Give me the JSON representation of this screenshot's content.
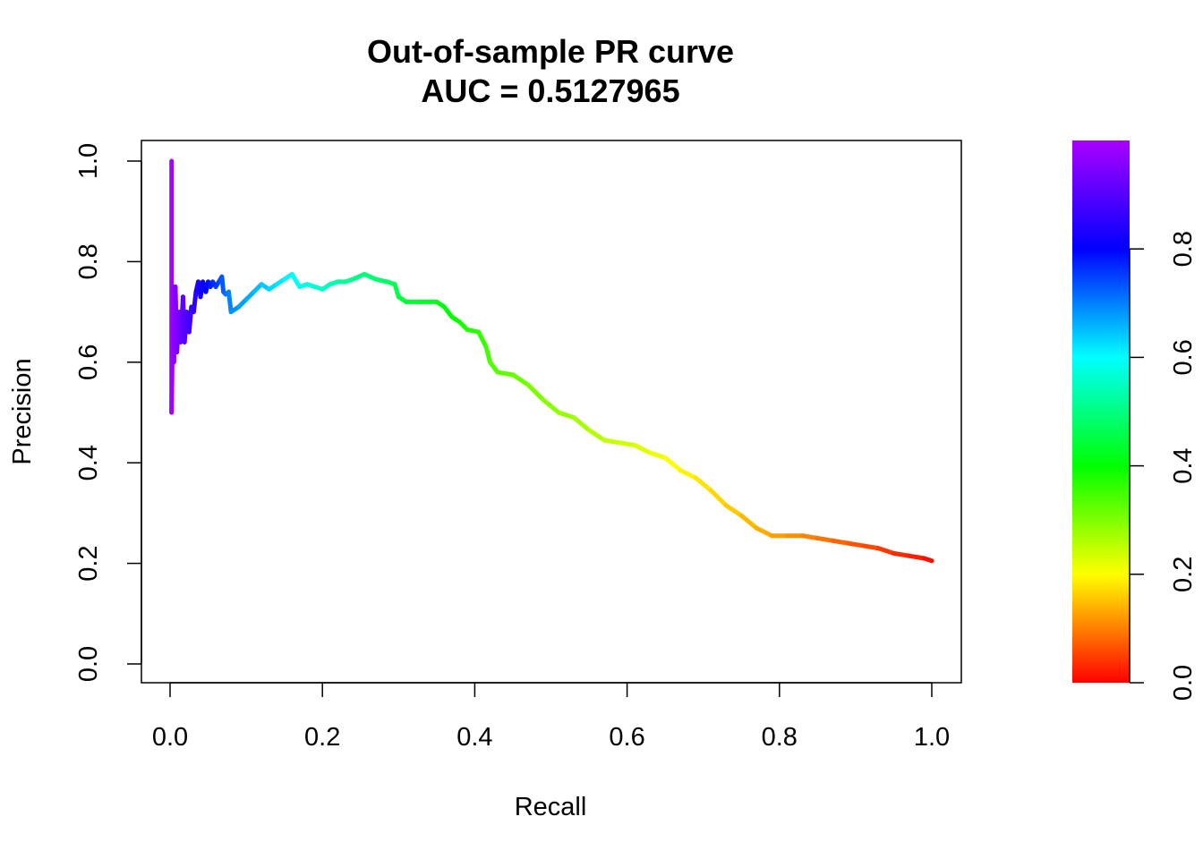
{
  "chart_data": {
    "type": "line",
    "title_lines": [
      "Out-of-sample PR curve",
      "AUC = 0.5127965"
    ],
    "xlabel": "Recall",
    "ylabel": "Precision",
    "xlim": [
      0,
      1
    ],
    "ylim": [
      0,
      1
    ],
    "x_ticks": [
      "0.0",
      "0.2",
      "0.4",
      "0.6",
      "0.8",
      "1.0"
    ],
    "y_ticks": [
      "0.0",
      "0.2",
      "0.4",
      "0.6",
      "0.8",
      "1.0"
    ],
    "grid": false,
    "line_color_scale": "rainbow by threshold",
    "series": [
      {
        "points": [
          [
            0.002,
            1.0
          ],
          [
            0.002,
            0.5
          ],
          [
            0.004,
            0.75
          ],
          [
            0.005,
            0.6
          ],
          [
            0.007,
            0.75
          ],
          [
            0.009,
            0.62
          ],
          [
            0.012,
            0.7
          ],
          [
            0.014,
            0.64
          ],
          [
            0.017,
            0.73
          ],
          [
            0.019,
            0.64
          ],
          [
            0.022,
            0.7
          ],
          [
            0.025,
            0.66
          ],
          [
            0.028,
            0.71
          ],
          [
            0.031,
            0.7
          ],
          [
            0.034,
            0.74
          ],
          [
            0.037,
            0.76
          ],
          [
            0.04,
            0.73
          ],
          [
            0.043,
            0.76
          ],
          [
            0.047,
            0.74
          ],
          [
            0.05,
            0.76
          ],
          [
            0.053,
            0.75
          ],
          [
            0.056,
            0.76
          ],
          [
            0.06,
            0.75
          ],
          [
            0.064,
            0.76
          ],
          [
            0.068,
            0.77
          ],
          [
            0.07,
            0.74
          ],
          [
            0.073,
            0.735
          ],
          [
            0.077,
            0.74
          ],
          [
            0.08,
            0.7
          ],
          [
            0.09,
            0.71
          ],
          [
            0.1,
            0.725
          ],
          [
            0.11,
            0.74
          ],
          [
            0.12,
            0.755
          ],
          [
            0.13,
            0.745
          ],
          [
            0.14,
            0.755
          ],
          [
            0.15,
            0.765
          ],
          [
            0.16,
            0.775
          ],
          [
            0.17,
            0.75
          ],
          [
            0.18,
            0.755
          ],
          [
            0.19,
            0.75
          ],
          [
            0.2,
            0.745
          ],
          [
            0.21,
            0.755
          ],
          [
            0.22,
            0.76
          ],
          [
            0.23,
            0.76
          ],
          [
            0.24,
            0.765
          ],
          [
            0.255,
            0.775
          ],
          [
            0.27,
            0.765
          ],
          [
            0.285,
            0.76
          ],
          [
            0.295,
            0.755
          ],
          [
            0.3,
            0.73
          ],
          [
            0.31,
            0.72
          ],
          [
            0.33,
            0.72
          ],
          [
            0.35,
            0.72
          ],
          [
            0.36,
            0.71
          ],
          [
            0.37,
            0.69
          ],
          [
            0.38,
            0.68
          ],
          [
            0.39,
            0.665
          ],
          [
            0.405,
            0.66
          ],
          [
            0.415,
            0.63
          ],
          [
            0.42,
            0.6
          ],
          [
            0.43,
            0.58
          ],
          [
            0.45,
            0.575
          ],
          [
            0.47,
            0.555
          ],
          [
            0.49,
            0.525
          ],
          [
            0.51,
            0.5
          ],
          [
            0.53,
            0.49
          ],
          [
            0.55,
            0.465
          ],
          [
            0.57,
            0.445
          ],
          [
            0.59,
            0.44
          ],
          [
            0.61,
            0.435
          ],
          [
            0.63,
            0.42
          ],
          [
            0.65,
            0.41
          ],
          [
            0.67,
            0.385
          ],
          [
            0.69,
            0.37
          ],
          [
            0.71,
            0.345
          ],
          [
            0.73,
            0.315
          ],
          [
            0.75,
            0.295
          ],
          [
            0.77,
            0.27
          ],
          [
            0.79,
            0.255
          ],
          [
            0.81,
            0.255
          ],
          [
            0.83,
            0.255
          ],
          [
            0.85,
            0.25
          ],
          [
            0.87,
            0.245
          ],
          [
            0.89,
            0.24
          ],
          [
            0.91,
            0.235
          ],
          [
            0.93,
            0.23
          ],
          [
            0.95,
            0.22
          ],
          [
            0.97,
            0.215
          ],
          [
            0.99,
            0.21
          ],
          [
            1.0,
            0.205
          ]
        ]
      }
    ],
    "colorbar": {
      "range": [
        0,
        1
      ],
      "ticks": [
        "0.0",
        "0.2",
        "0.4",
        "0.6",
        "0.8"
      ],
      "colors": [
        "#ff0000",
        "#ffff00",
        "#00ff00",
        "#00ffff",
        "#0000ff",
        "#aa00ff"
      ]
    }
  }
}
